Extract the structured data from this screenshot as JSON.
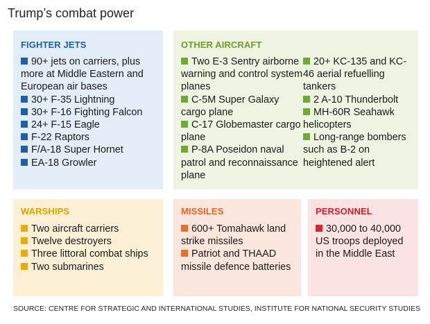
{
  "title": "Trump’s combat power",
  "colors": {
    "fighter_bg": "#e3edf7",
    "fighter_accent": "#1f5fa6",
    "other_bg": "#eef3e2",
    "other_accent": "#6eab33",
    "warships_bg": "#fbf0d6",
    "warships_accent": "#e6ac10",
    "missiles_bg": "#fbe6dd",
    "missiles_accent": "#e8702f",
    "personnel_bg": "#fbe3e3",
    "personnel_accent": "#d92430"
  },
  "fighter_jets": {
    "heading": "FIGHTER JETS",
    "items": [
      "90+ jets on carriers, plus more at Middle Eastern and European air bases",
      "30+ F-35 Lightning",
      "30+ F-16 Fighting Falcon",
      "24+ F-15 Eagle",
      "F-22 Raptors",
      "F/A-18 Super Hornet",
      "EA-18 Growler"
    ]
  },
  "other_aircraft": {
    "heading": "OTHER AIRCRAFT",
    "col1": [
      "Two E-3 Sentry airborne warning and control system planes",
      "C-5M Super Galaxy cargo plane",
      "C-17 Globemaster cargo plane",
      "P-8A Poseidon naval patrol and reconnaissance plane"
    ],
    "col2": [
      "20+ KC-135 and KC-46 aerial refuelling tankers",
      "2 A-10 Thunderbolt",
      "MH-60R Seahawk helicopters",
      "Long-range bombers such as B-2 on heightened alert"
    ]
  },
  "warships": {
    "heading": "WARSHIPS",
    "items": [
      "Two aircraft carriers",
      "Twelve destroyers",
      "Three littoral combat ships",
      "Two submarines"
    ]
  },
  "missiles": {
    "heading": "MISSILES",
    "items": [
      "600+ Tomahawk land strike missiles",
      "Patriot and THAAD missile defence batteries"
    ]
  },
  "personnel": {
    "heading": "PERSONNEL",
    "items": [
      "30,000 to 40,000 US troops deployed in the Middle East"
    ]
  },
  "source": "SOURCE: CENTRE FOR STRATEGIC AND  INTERNATIONAL STUDIES, INSTITUTE FOR NATIONAL SECURITY STUDIES"
}
